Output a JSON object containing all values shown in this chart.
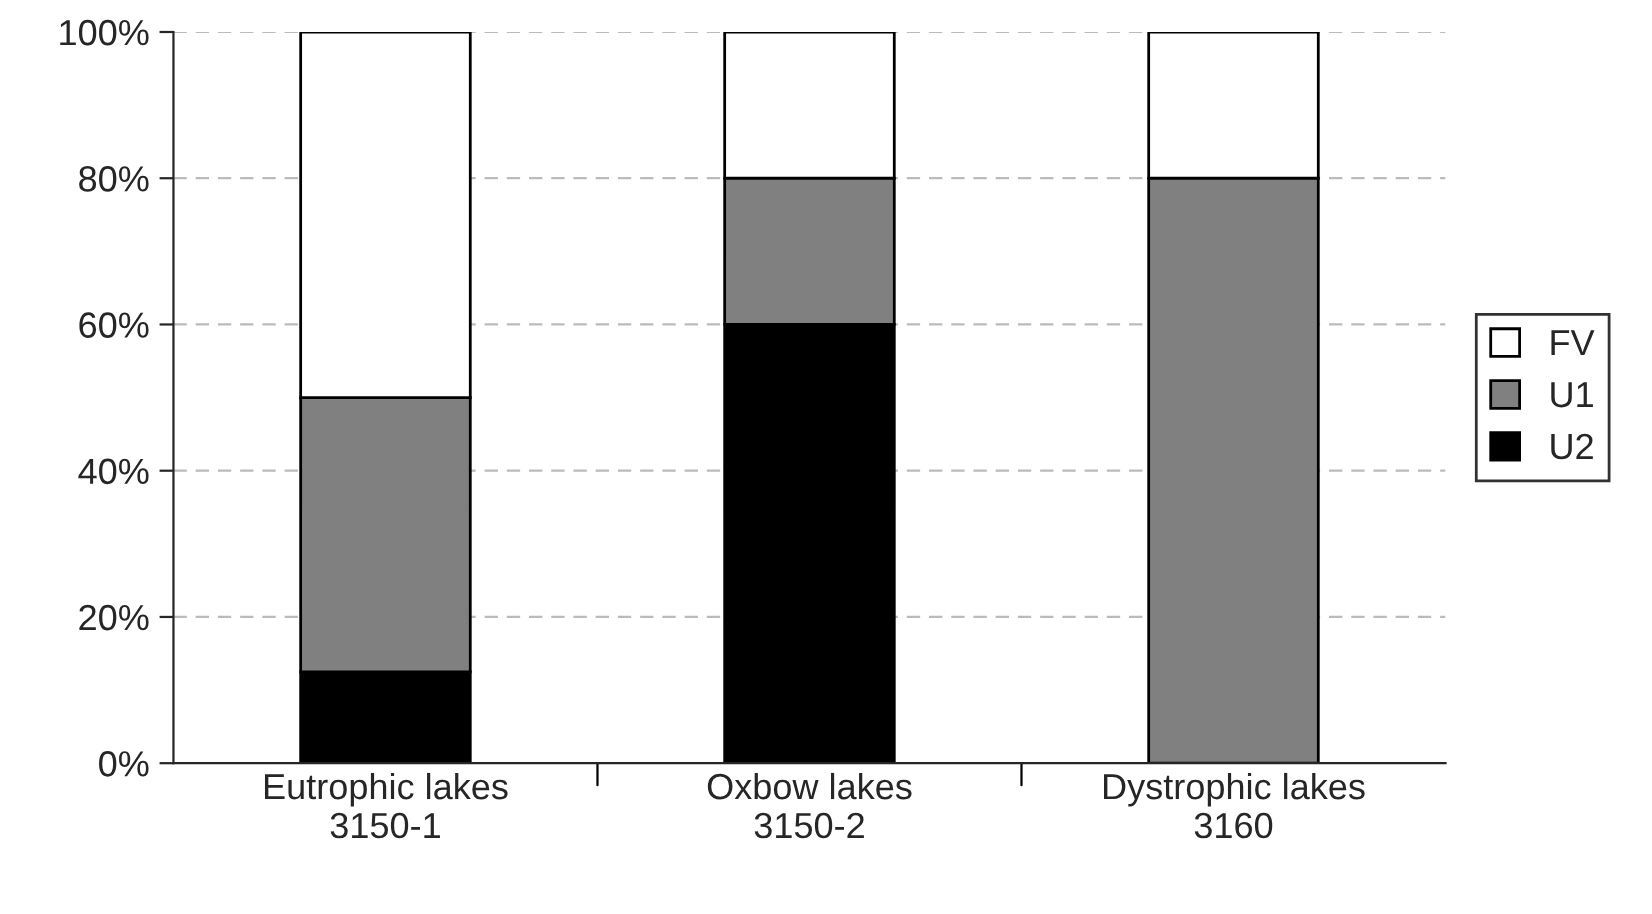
{
  "chart_data": {
    "type": "bar",
    "stacked": true,
    "categories": [
      "Eutrophic lakes\n3150-1",
      "Oxbow lakes\n3150-2",
      "Dystrophic lakes\n3160"
    ],
    "series": [
      {
        "name": "U2",
        "color": "#000000",
        "values": [
          12.5,
          60,
          0
        ]
      },
      {
        "name": "U1",
        "color": "#808080",
        "values": [
          37.5,
          20,
          80
        ]
      },
      {
        "name": "FV",
        "color": "#ffffff",
        "values": [
          50,
          20,
          20
        ]
      }
    ],
    "ylim": [
      0,
      100
    ],
    "yticks": [
      {
        "value": 0,
        "label": "0%"
      },
      {
        "value": 20,
        "label": "20%"
      },
      {
        "value": 40,
        "label": "40%"
      },
      {
        "value": 60,
        "label": "60%"
      },
      {
        "value": 80,
        "label": "80%"
      },
      {
        "value": 100,
        "label": "100%"
      }
    ],
    "grid": "y",
    "legend": "right"
  }
}
